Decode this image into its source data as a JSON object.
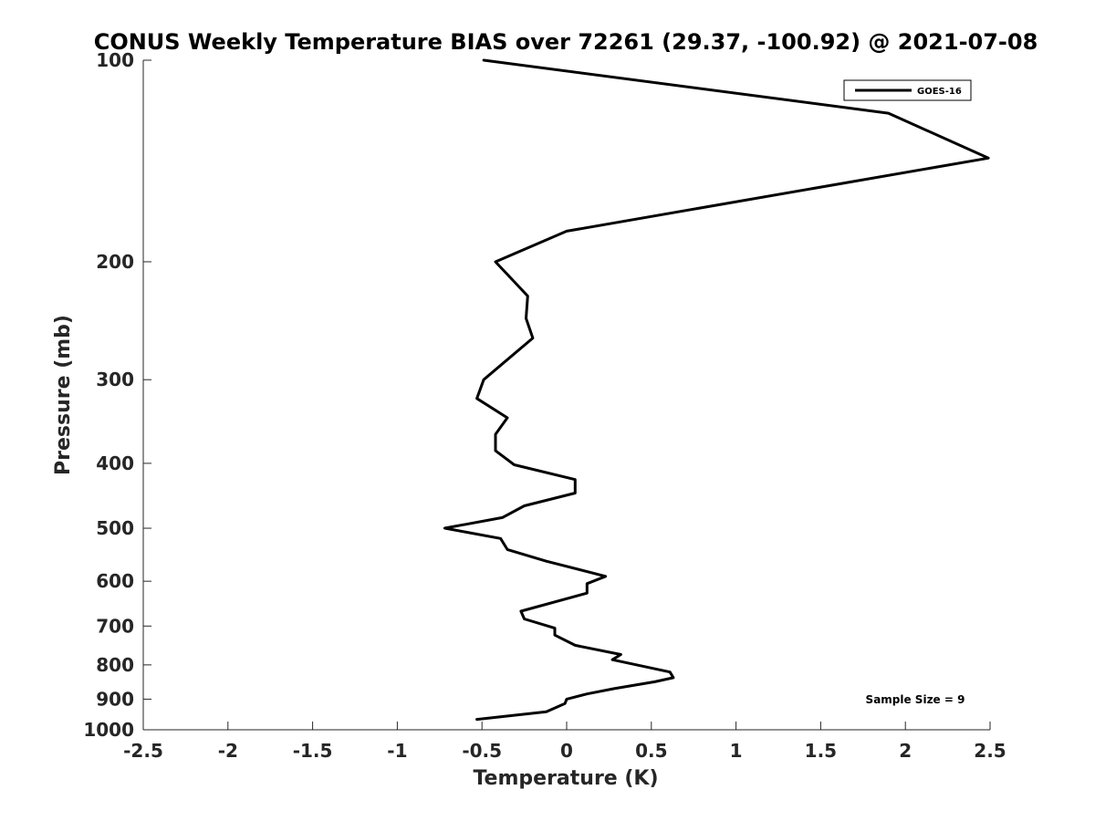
{
  "chart_data": {
    "type": "line",
    "title": "CONUS Weekly Temperature BIAS over 72261 (29.37, -100.92) @ 2021-07-08",
    "xlabel": "Temperature (K)",
    "ylabel": "Pressure (mb)",
    "xlim": [
      -2.5,
      2.5
    ],
    "ylim": [
      1000,
      100
    ],
    "y_scale": "log",
    "y_reversed": true,
    "grid": false,
    "legend_position": "top-right",
    "x_ticks": [
      "-2.5",
      "-2",
      "-1.5",
      "-1",
      "-0.5",
      "0",
      "0.5",
      "1",
      "1.5",
      "2",
      "2.5"
    ],
    "x_tick_values": [
      -2.5,
      -2,
      -1.5,
      -1,
      -0.5,
      0,
      0.5,
      1,
      1.5,
      2,
      2.5
    ],
    "y_ticks": [
      "100",
      "200",
      "300",
      "400",
      "500",
      "600",
      "700",
      "800",
      "900",
      "1000"
    ],
    "y_tick_values": [
      100,
      200,
      300,
      400,
      500,
      600,
      700,
      800,
      900,
      1000
    ],
    "series": [
      {
        "name": "GOES-16",
        "color": "#000000",
        "points": [
          {
            "x": -0.49,
            "y": 100
          },
          {
            "x": 1.9,
            "y": 120
          },
          {
            "x": 2.49,
            "y": 140
          },
          {
            "x": 0.0,
            "y": 180
          },
          {
            "x": -0.42,
            "y": 200
          },
          {
            "x": -0.23,
            "y": 225
          },
          {
            "x": -0.24,
            "y": 243
          },
          {
            "x": -0.2,
            "y": 260
          },
          {
            "x": -0.49,
            "y": 300
          },
          {
            "x": -0.53,
            "y": 320
          },
          {
            "x": -0.35,
            "y": 342
          },
          {
            "x": -0.42,
            "y": 362
          },
          {
            "x": -0.42,
            "y": 383
          },
          {
            "x": -0.31,
            "y": 402
          },
          {
            "x": 0.05,
            "y": 423
          },
          {
            "x": 0.05,
            "y": 443
          },
          {
            "x": -0.25,
            "y": 463
          },
          {
            "x": -0.38,
            "y": 482
          },
          {
            "x": -0.72,
            "y": 500
          },
          {
            "x": -0.39,
            "y": 518
          },
          {
            "x": -0.35,
            "y": 538
          },
          {
            "x": -0.12,
            "y": 560
          },
          {
            "x": 0.23,
            "y": 590
          },
          {
            "x": 0.12,
            "y": 605
          },
          {
            "x": 0.12,
            "y": 625
          },
          {
            "x": -0.27,
            "y": 665
          },
          {
            "x": -0.25,
            "y": 683
          },
          {
            "x": -0.07,
            "y": 705
          },
          {
            "x": -0.07,
            "y": 722
          },
          {
            "x": 0.05,
            "y": 748
          },
          {
            "x": 0.32,
            "y": 772
          },
          {
            "x": 0.27,
            "y": 786
          },
          {
            "x": 0.61,
            "y": 820
          },
          {
            "x": 0.63,
            "y": 836
          },
          {
            "x": 0.52,
            "y": 848
          },
          {
            "x": 0.28,
            "y": 868
          },
          {
            "x": 0.12,
            "y": 884
          },
          {
            "x": 0.0,
            "y": 900
          },
          {
            "x": -0.01,
            "y": 914
          },
          {
            "x": -0.12,
            "y": 940
          },
          {
            "x": -0.53,
            "y": 965
          }
        ]
      }
    ],
    "annotation": "Sample Size = 9"
  }
}
